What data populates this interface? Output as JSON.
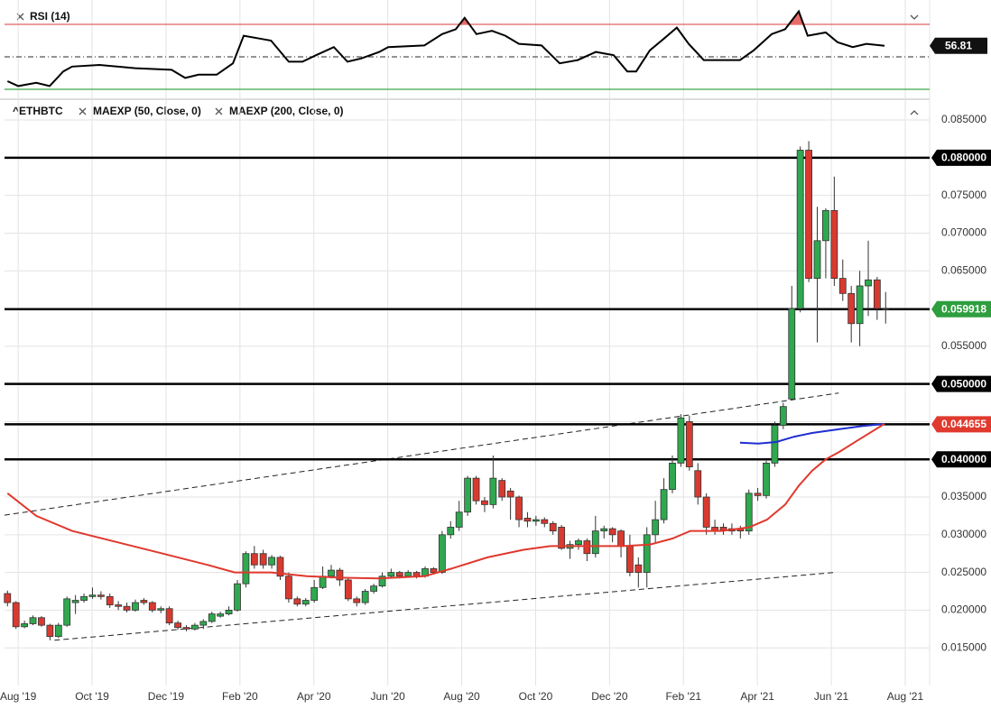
{
  "chart_data": [
    {
      "type": "candlestick",
      "xlim": [
        -0.37,
        24.66
      ],
      "xticks": [
        {
          "value": 0,
          "label": "Aug '19"
        },
        {
          "value": 2,
          "label": "Oct '19"
        },
        {
          "value": 4,
          "label": "Dec '19"
        },
        {
          "value": 6,
          "label": "Feb '20"
        },
        {
          "value": 8,
          "label": "Apr '20"
        },
        {
          "value": 10,
          "label": "Jun '20"
        },
        {
          "value": 12,
          "label": "Aug '20"
        },
        {
          "value": 14,
          "label": "Oct '20"
        },
        {
          "value": 16,
          "label": "Dec '20"
        },
        {
          "value": 18,
          "label": "Feb '21"
        },
        {
          "value": 20,
          "label": "Apr '21"
        },
        {
          "value": 22,
          "label": "Jun '21"
        },
        {
          "value": 24,
          "label": "Aug '21"
        }
      ],
      "ylim": [
        0.01,
        0.0874
      ],
      "yticks": [
        {
          "value": 0.015,
          "label": "0.015000"
        },
        {
          "value": 0.02,
          "label": "0.020000"
        },
        {
          "value": 0.025,
          "label": "0.025000"
        },
        {
          "value": 0.03,
          "label": "0.030000"
        },
        {
          "value": 0.035,
          "label": "0.035000"
        },
        {
          "value": 0.04,
          "label": "0.040000"
        },
        {
          "value": 0.045,
          "label": "0.045000"
        },
        {
          "value": 0.05,
          "label": "0.050000"
        },
        {
          "value": 0.055,
          "label": "0.055000"
        },
        {
          "value": 0.06,
          "label": "0.060000"
        },
        {
          "value": 0.065,
          "label": "0.065000"
        },
        {
          "value": 0.07,
          "label": "0.070000"
        },
        {
          "value": 0.075,
          "label": "0.075000"
        },
        {
          "value": 0.08,
          "label": "0.080000"
        },
        {
          "value": 0.085,
          "label": "0.085000"
        }
      ],
      "grid": true,
      "up_color": "#2fa84f",
      "down_color": "#d93a30",
      "series": [
        {
          "name": "^ETHBTC",
          "x": [
            -0.29,
            -0.06,
            0.17,
            0.4,
            0.63,
            0.86,
            1.09,
            1.32,
            1.55,
            1.78,
            2.01,
            2.24,
            2.48,
            2.71,
            2.94,
            3.17,
            3.4,
            3.63,
            3.86,
            4.09,
            4.32,
            4.55,
            4.78,
            5.01,
            5.24,
            5.47,
            5.7,
            5.93,
            6.16,
            6.39,
            6.63,
            6.86,
            7.09,
            7.32,
            7.55,
            7.78,
            8.01,
            8.24,
            8.47,
            8.7,
            8.93,
            9.16,
            9.39,
            9.62,
            9.85,
            10.09,
            10.32,
            10.55,
            10.78,
            11.01,
            11.24,
            11.47,
            11.7,
            11.93,
            12.16,
            12.39,
            12.62,
            12.85,
            13.09,
            13.32,
            13.55,
            13.78,
            14.01,
            14.24,
            14.47,
            14.7,
            14.93,
            15.16,
            15.39,
            15.62,
            15.85,
            16.08,
            16.31,
            16.55,
            16.78,
            17.01,
            17.24,
            17.47,
            17.7,
            17.93,
            18.16,
            18.39,
            18.62,
            18.85,
            19.08,
            19.31,
            19.54,
            19.77,
            20.01,
            20.24,
            20.47,
            20.7,
            20.93,
            21.16,
            21.39,
            21.62,
            21.85,
            22.08,
            22.31,
            22.54,
            22.77,
            23.0,
            23.24,
            23.47
          ],
          "open": [
            0.0222,
            0.021,
            0.0178,
            0.0182,
            0.019,
            0.018,
            0.0165,
            0.018,
            0.021,
            0.0213,
            0.0218,
            0.022,
            0.0218,
            0.0207,
            0.0205,
            0.02,
            0.0213,
            0.021,
            0.02,
            0.0202,
            0.0183,
            0.0177,
            0.0175,
            0.018,
            0.0185,
            0.0192,
            0.0195,
            0.02,
            0.0235,
            0.0275,
            0.0275,
            0.026,
            0.027,
            0.0245,
            0.0215,
            0.0208,
            0.0213,
            0.023,
            0.0245,
            0.0253,
            0.024,
            0.0215,
            0.021,
            0.0225,
            0.0232,
            0.0245,
            0.025,
            0.0245,
            0.025,
            0.0245,
            0.0255,
            0.025,
            0.03,
            0.031,
            0.033,
            0.0375,
            0.0345,
            0.034,
            0.0372,
            0.0358,
            0.035,
            0.0322,
            0.0318,
            0.032,
            0.0315,
            0.031,
            0.0282,
            0.0287,
            0.0292,
            0.0275,
            0.0305,
            0.0308,
            0.0305,
            0.0285,
            0.026,
            0.025,
            0.03,
            0.032,
            0.036,
            0.0395,
            0.045,
            0.0385,
            0.035,
            0.031,
            0.031,
            0.0308,
            0.0308,
            0.0305,
            0.0355,
            0.0352,
            0.0395,
            0.0445,
            0.048,
            0.06,
            0.081,
            0.064,
            0.069,
            0.073,
            0.064,
            0.062,
            0.058,
            0.063,
            0.0638,
            0.0598
          ],
          "high": [
            0.0226,
            0.0212,
            0.0186,
            0.0193,
            0.0192,
            0.0182,
            0.0183,
            0.0218,
            0.022,
            0.0222,
            0.023,
            0.0225,
            0.0222,
            0.0212,
            0.021,
            0.0214,
            0.0216,
            0.0212,
            0.0205,
            0.0205,
            0.0186,
            0.018,
            0.0183,
            0.0188,
            0.0198,
            0.0198,
            0.0205,
            0.024,
            0.0278,
            0.0285,
            0.028,
            0.0273,
            0.0272,
            0.025,
            0.0218,
            0.0216,
            0.024,
            0.0258,
            0.026,
            0.0256,
            0.0243,
            0.0218,
            0.0228,
            0.0235,
            0.025,
            0.0255,
            0.0252,
            0.0253,
            0.0252,
            0.0258,
            0.0257,
            0.0305,
            0.0318,
            0.0345,
            0.0378,
            0.0378,
            0.035,
            0.0405,
            0.0375,
            0.0362,
            0.0352,
            0.033,
            0.0325,
            0.0323,
            0.0318,
            0.0313,
            0.0292,
            0.0295,
            0.0295,
            0.0325,
            0.0312,
            0.031,
            0.0307,
            0.03,
            0.027,
            0.031,
            0.0345,
            0.0375,
            0.0405,
            0.046,
            0.0458,
            0.0395,
            0.0355,
            0.032,
            0.0315,
            0.0315,
            0.0312,
            0.036,
            0.0362,
            0.0398,
            0.045,
            0.0475,
            0.063,
            0.0815,
            0.0822,
            0.0735,
            0.0733,
            0.0775,
            0.0665,
            0.063,
            0.065,
            0.069,
            0.0642,
            0.0622
          ],
          "low": [
            0.0205,
            0.0175,
            0.0176,
            0.018,
            0.0178,
            0.016,
            0.0163,
            0.0178,
            0.0195,
            0.021,
            0.0215,
            0.0214,
            0.0203,
            0.02,
            0.0197,
            0.0198,
            0.0207,
            0.0197,
            0.0196,
            0.018,
            0.0174,
            0.0172,
            0.0173,
            0.0175,
            0.0183,
            0.019,
            0.0193,
            0.0198,
            0.023,
            0.0255,
            0.0255,
            0.0255,
            0.024,
            0.021,
            0.0205,
            0.0205,
            0.021,
            0.0228,
            0.0242,
            0.0232,
            0.0212,
            0.0205,
            0.0207,
            0.0222,
            0.023,
            0.0243,
            0.0242,
            0.0243,
            0.0242,
            0.0243,
            0.0247,
            0.0248,
            0.0295,
            0.0305,
            0.0325,
            0.034,
            0.033,
            0.0335,
            0.0345,
            0.032,
            0.031,
            0.031,
            0.0312,
            0.031,
            0.03,
            0.028,
            0.0268,
            0.028,
            0.0265,
            0.027,
            0.0295,
            0.029,
            0.027,
            0.0245,
            0.023,
            0.023,
            0.029,
            0.0315,
            0.0355,
            0.039,
            0.0385,
            0.034,
            0.03,
            0.03,
            0.03,
            0.03,
            0.0295,
            0.03,
            0.0345,
            0.0348,
            0.039,
            0.044,
            0.0478,
            0.0595,
            0.0635,
            0.0555,
            0.064,
            0.063,
            0.061,
            0.0555,
            0.055,
            0.059,
            0.0585,
            0.058
          ],
          "close": [
            0.021,
            0.0178,
            0.0182,
            0.019,
            0.018,
            0.0165,
            0.018,
            0.0215,
            0.0213,
            0.0218,
            0.022,
            0.0218,
            0.0207,
            0.0205,
            0.02,
            0.021,
            0.021,
            0.02,
            0.0202,
            0.0183,
            0.0177,
            0.0175,
            0.018,
            0.0185,
            0.0195,
            0.0195,
            0.02,
            0.0235,
            0.0275,
            0.026,
            0.026,
            0.027,
            0.0245,
            0.0215,
            0.0208,
            0.0213,
            0.023,
            0.0245,
            0.0253,
            0.024,
            0.0215,
            0.021,
            0.0225,
            0.0232,
            0.0245,
            0.025,
            0.0245,
            0.025,
            0.0245,
            0.0255,
            0.025,
            0.03,
            0.031,
            0.033,
            0.0375,
            0.0345,
            0.034,
            0.0375,
            0.035,
            0.035,
            0.032,
            0.0318,
            0.032,
            0.0315,
            0.0305,
            0.0282,
            0.0287,
            0.0292,
            0.0275,
            0.0305,
            0.0308,
            0.03,
            0.0285,
            0.025,
            0.025,
            0.03,
            0.032,
            0.036,
            0.0395,
            0.0455,
            0.039,
            0.035,
            0.031,
            0.0305,
            0.0306,
            0.0305,
            0.0305,
            0.0355,
            0.0352,
            0.0395,
            0.0445,
            0.047,
            0.06,
            0.081,
            0.064,
            0.069,
            0.073,
            0.064,
            0.062,
            0.058,
            0.063,
            0.0638,
            0.06,
            0.059918
          ]
        },
        {
          "name": "MAEXP (50, Close, 0)",
          "color": "#1f2fd0",
          "x": [
            19.53,
            20.02,
            20.51,
            21.0,
            21.48,
            22.22,
            22.83,
            23.44
          ],
          "values": [
            0.0422,
            0.0421,
            0.0423,
            0.043,
            0.0435,
            0.044,
            0.0444,
            0.0447
          ]
        },
        {
          "name": "MAEXP (200, Close, 0)",
          "color": "#e0392d",
          "x": [
            -0.29,
            0.49,
            1.46,
            2.69,
            3.91,
            5.13,
            5.86,
            6.84,
            7.81,
            8.79,
            9.77,
            10.99,
            11.72,
            12.7,
            13.67,
            14.4,
            15.38,
            16.36,
            17.09,
            17.7,
            18.19,
            19.04,
            19.78,
            20.26,
            20.75,
            21.12,
            21.48,
            21.85,
            22.22,
            22.71,
            23.44
          ],
          "values": [
            0.0355,
            0.0325,
            0.0305,
            0.029,
            0.0275,
            0.026,
            0.025,
            0.025,
            0.0245,
            0.0243,
            0.0242,
            0.0245,
            0.0255,
            0.027,
            0.028,
            0.0285,
            0.0285,
            0.0285,
            0.0287,
            0.0295,
            0.0305,
            0.0305,
            0.031,
            0.032,
            0.034,
            0.0365,
            0.0385,
            0.04,
            0.041,
            0.0425,
            0.0447
          ]
        }
      ],
      "trendlines": [
        {
          "x": [
            -0.37,
            22.2
          ],
          "values": [
            0.0326,
            0.0488
          ]
        },
        {
          "x": [
            0.98,
            22.1
          ],
          "values": [
            0.016,
            0.025
          ]
        }
      ],
      "price_lines": [
        {
          "value": 0.08,
          "label": "0.080000",
          "color": "#000000"
        },
        {
          "value": 0.059918,
          "label": "0.059918",
          "color": "#2e9e3e"
        },
        {
          "value": 0.05,
          "label": "0.050000",
          "color": "#000000"
        },
        {
          "value": 0.044655,
          "label": "0.044655",
          "color": "#e03a2f"
        },
        {
          "value": 0.04,
          "label": "0.040000",
          "color": "#000000"
        }
      ]
    },
    {
      "type": "line",
      "ylim": [
        25,
        82.2
      ],
      "levels": [
        {
          "value": 70,
          "color": "#e06060"
        },
        {
          "value": 50,
          "color": "#555555"
        },
        {
          "value": 30,
          "color": "#3aa84a"
        }
      ],
      "series": [
        {
          "name": "RSI (14)",
          "color": "#000000",
          "fill_color": "#e86a6a",
          "x": [
            -0.29,
            0,
            0.49,
            0.85,
            1.22,
            1.46,
            2.2,
            3.17,
            4.15,
            4.52,
            4.88,
            5.37,
            5.81,
            6.1,
            6.59,
            6.84,
            7.32,
            7.69,
            8.06,
            8.54,
            8.91,
            9.28,
            9.77,
            10.01,
            10.99,
            11.47,
            11.84,
            12.08,
            12.4,
            12.82,
            13.18,
            13.55,
            14.16,
            14.65,
            15.14,
            15.63,
            16.11,
            16.48,
            16.72,
            17.09,
            17.46,
            17.82,
            18.14,
            18.55,
            19.04,
            19.53,
            19.9,
            20.39,
            20.75,
            21.12,
            21.36,
            21.85,
            22.17,
            22.58,
            22.95,
            23.44
          ],
          "values": [
            35,
            32,
            34,
            32,
            41,
            44,
            45,
            43,
            42,
            37,
            39,
            39,
            46,
            63,
            61,
            60,
            47,
            47,
            51,
            56,
            47,
            49,
            53,
            56,
            57,
            64,
            67,
            74,
            64,
            66,
            63,
            58,
            57,
            46,
            48,
            53,
            51,
            41,
            41,
            54,
            61,
            68,
            58,
            48,
            48,
            48,
            54,
            64,
            67,
            78,
            63,
            65,
            59,
            56,
            58,
            56.81
          ]
        }
      ]
    }
  ]
}
